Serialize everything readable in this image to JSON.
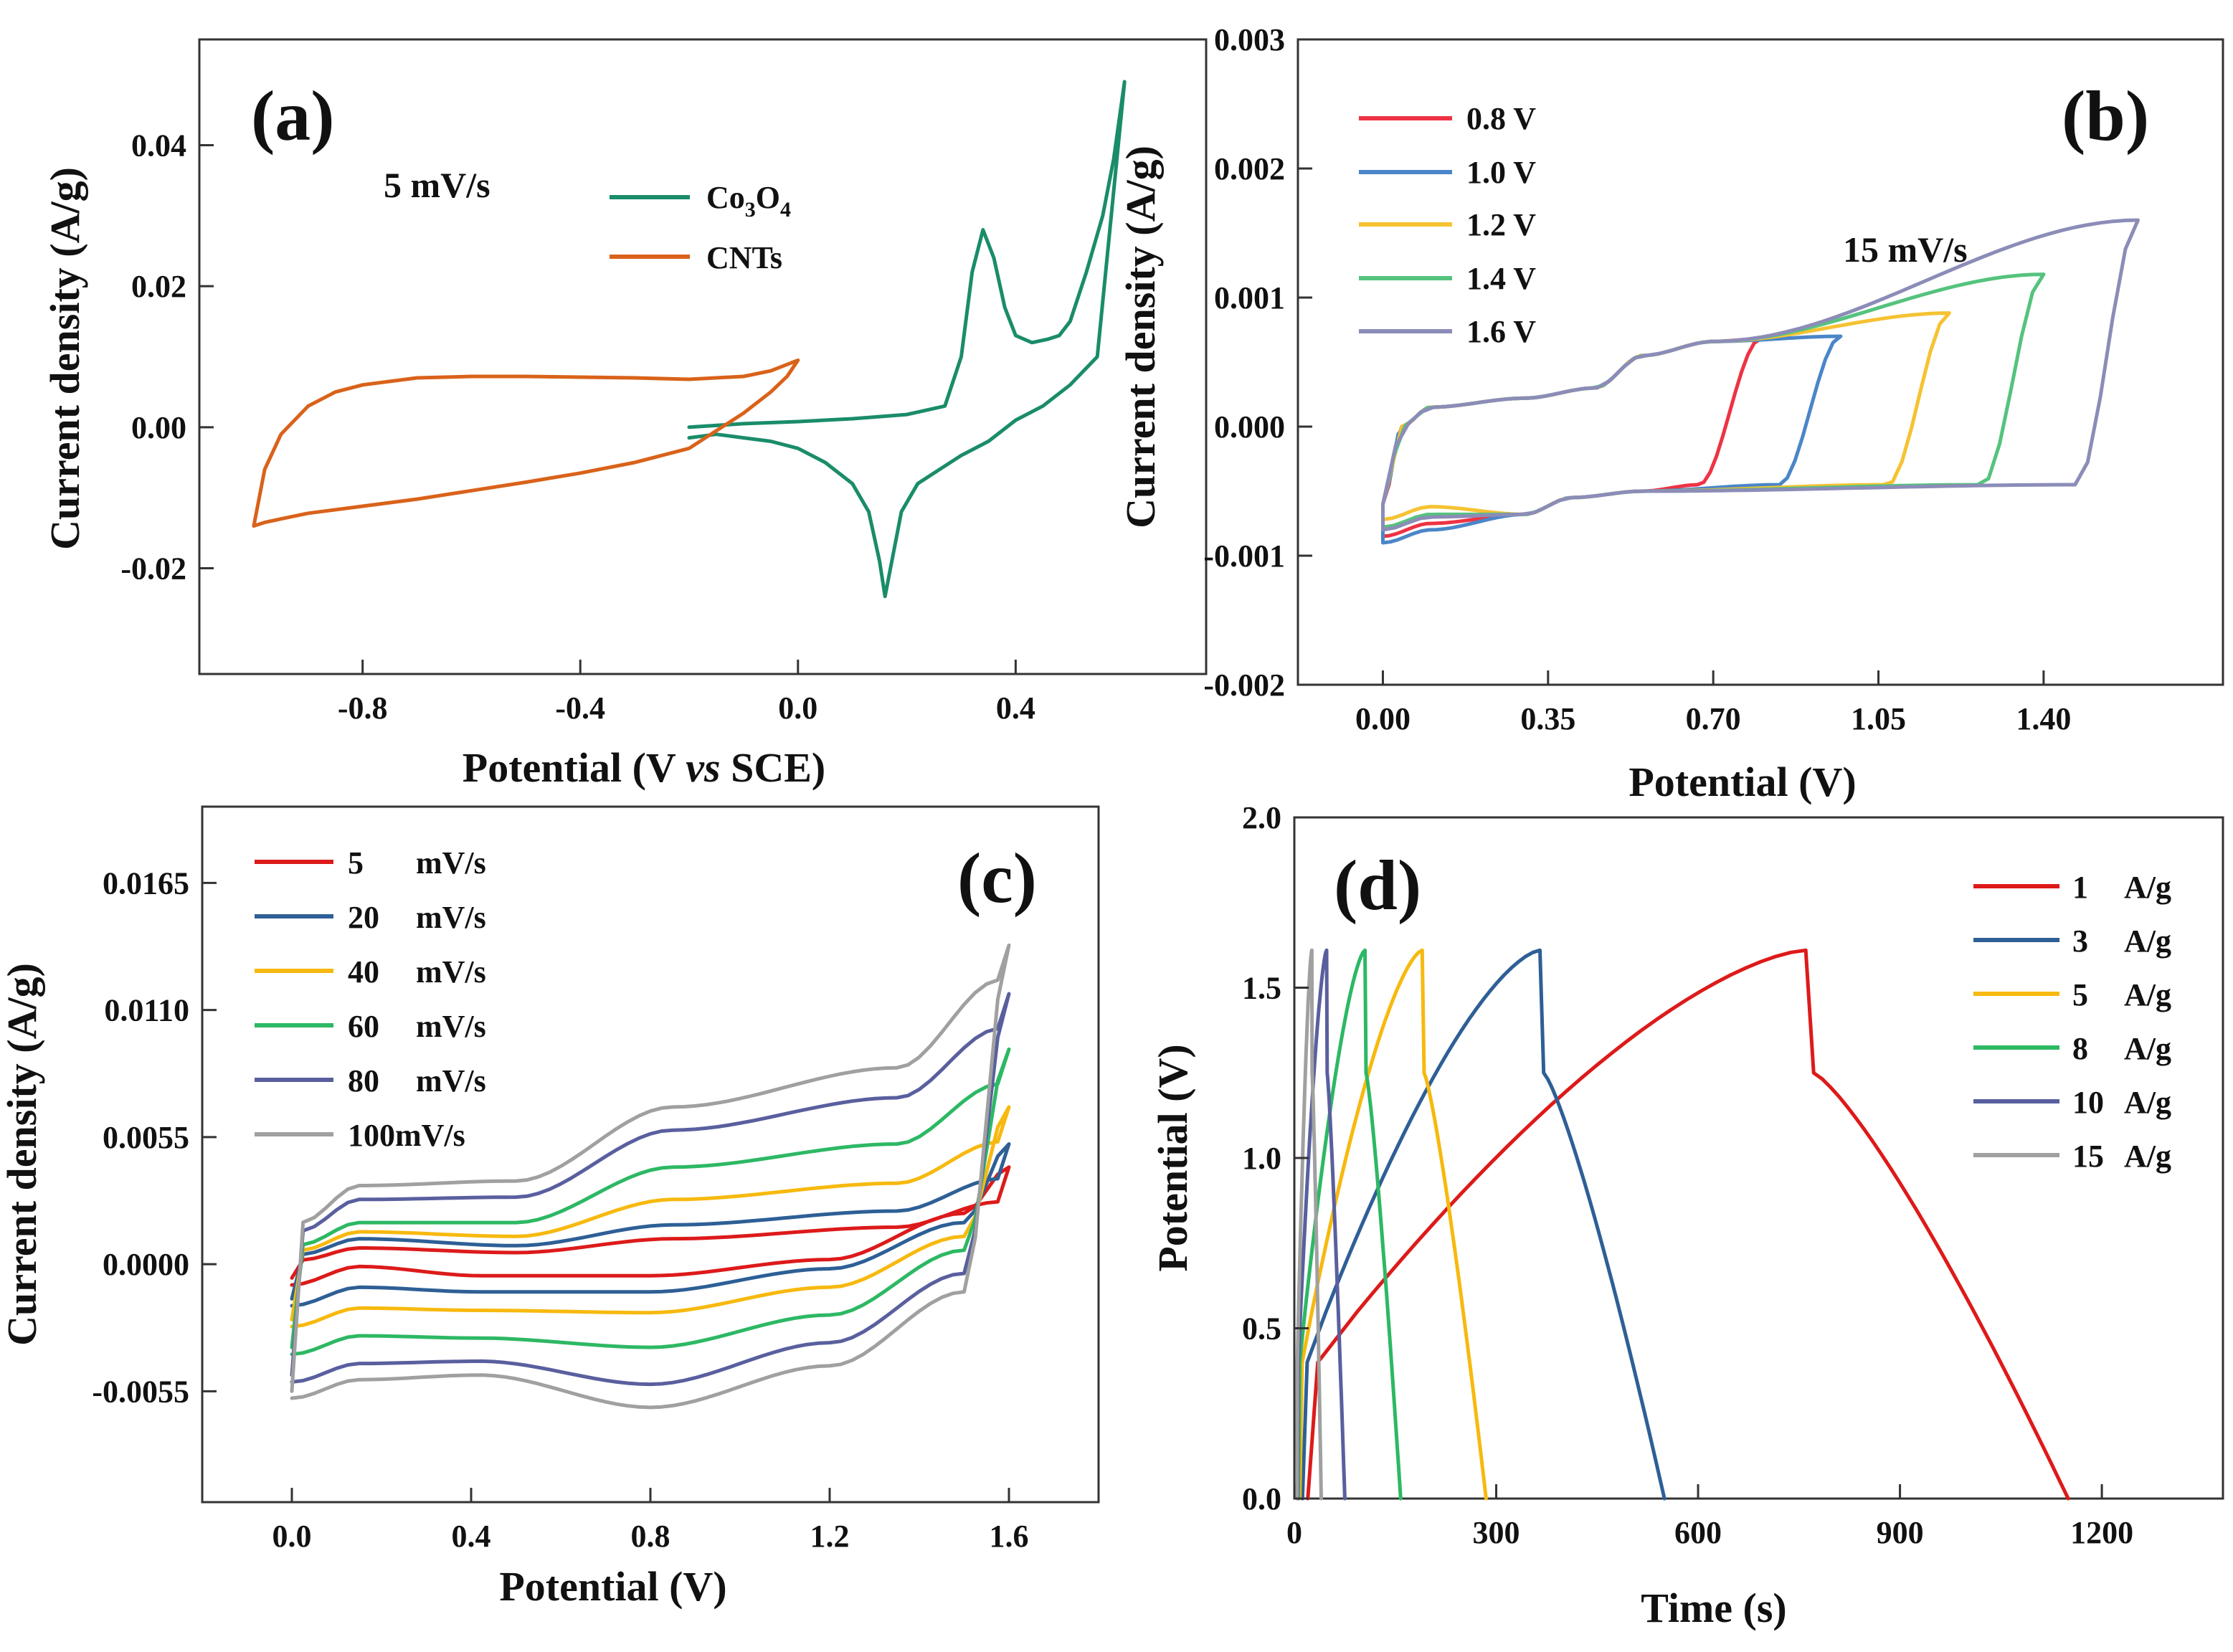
{
  "chart_data": [
    {
      "panel": "(a)",
      "type": "line",
      "subtype": "cyclic voltammetry",
      "xlabel": "Potential (V vs SCE)",
      "xlabel_parts": [
        "Potential (V ",
        "vs",
        " SCE)"
      ],
      "ylabel": "Current density (A/g)",
      "xlim": [
        -1.1,
        0.75
      ],
      "ylim": [
        -0.035,
        0.055
      ],
      "xticks": [
        -0.8,
        -0.4,
        0.0,
        0.4
      ],
      "xtick_labels": [
        "-0.8",
        "-0.4",
        "0.0",
        "0.4"
      ],
      "yticks": [
        -0.02,
        0.0,
        0.02,
        0.04
      ],
      "ytick_labels": [
        "-0.02",
        "0.00",
        "0.02",
        "0.04"
      ],
      "annotation": "5 mV/s",
      "legend": [
        {
          "label_main": "Co",
          "sub1": "3",
          "mid": "O",
          "sub2": "4",
          "color": "#1a8c6a"
        },
        {
          "label_main": "CNTs",
          "color": "#d9621a"
        }
      ],
      "series": [
        {
          "name": "Co3O4",
          "color": "#1a8c6a",
          "x": [
            -0.2,
            -0.1,
            0.0,
            0.1,
            0.2,
            0.27,
            0.3,
            0.32,
            0.34,
            0.36,
            0.38,
            0.4,
            0.43,
            0.46,
            0.48,
            0.5,
            0.53,
            0.56,
            0.58,
            0.6,
            0.55,
            0.5,
            0.45,
            0.4,
            0.35,
            0.3,
            0.26,
            0.22,
            0.19,
            0.17,
            0.16,
            0.15,
            0.13,
            0.1,
            0.05,
            0.0,
            -0.05,
            -0.1,
            -0.15,
            -0.2
          ],
          "y": [
            0.0,
            0.0005,
            0.0008,
            0.0012,
            0.0018,
            0.003,
            0.01,
            0.022,
            0.028,
            0.024,
            0.017,
            0.013,
            0.012,
            0.0125,
            0.013,
            0.015,
            0.022,
            0.03,
            0.038,
            0.049,
            0.01,
            0.006,
            0.003,
            0.001,
            -0.002,
            -0.004,
            -0.006,
            -0.008,
            -0.012,
            -0.02,
            -0.024,
            -0.019,
            -0.012,
            -0.008,
            -0.005,
            -0.003,
            -0.002,
            -0.0015,
            -0.001,
            -0.0015
          ]
        },
        {
          "name": "CNTs",
          "color": "#d9621a",
          "x": [
            -1.0,
            -0.98,
            -0.95,
            -0.9,
            -0.85,
            -0.8,
            -0.7,
            -0.6,
            -0.5,
            -0.4,
            -0.3,
            -0.2,
            -0.1,
            -0.05,
            0.0,
            -0.02,
            -0.05,
            -0.1,
            -0.2,
            -0.3,
            -0.4,
            -0.5,
            -0.6,
            -0.7,
            -0.8,
            -0.9,
            -0.95,
            -0.98,
            -1.0
          ],
          "y": [
            -0.014,
            -0.006,
            -0.001,
            0.003,
            0.005,
            0.006,
            0.007,
            0.0072,
            0.0072,
            0.0071,
            0.007,
            0.0068,
            0.0072,
            0.008,
            0.0095,
            0.0072,
            0.005,
            0.002,
            -0.003,
            -0.005,
            -0.0065,
            -0.0078,
            -0.009,
            -0.0102,
            -0.0112,
            -0.0122,
            -0.013,
            -0.0135,
            -0.014
          ]
        }
      ]
    },
    {
      "panel": "(b)",
      "type": "line",
      "subtype": "cyclic voltammetry",
      "xlabel": "Potential (V)",
      "ylabel": "Current density (A/g)",
      "xlim": [
        -0.18,
        1.78
      ],
      "ylim": [
        -0.002,
        0.003
      ],
      "xticks": [
        0.0,
        0.35,
        0.7,
        1.05,
        1.4
      ],
      "xtick_labels": [
        "0.00",
        "0.35",
        "0.70",
        "1.05",
        "1.40"
      ],
      "yticks": [
        -0.002,
        -0.001,
        0.0,
        0.001,
        0.002,
        0.003
      ],
      "ytick_labels": [
        "-0.002",
        "-0.001",
        "0.000",
        "0.001",
        "0.002",
        "0.003"
      ],
      "annotation": "15 mV/s",
      "series": [
        {
          "name": "0.8 V",
          "label": "0.8 V",
          "color": "#ee3344",
          "vmax": 0.8,
          "top_end": 0.00068,
          "ymin": -0.00085
        },
        {
          "name": "1.0 V",
          "label": "1.0 V",
          "color": "#4a86c8",
          "vmax": 0.97,
          "top_end": 0.0007,
          "ymin": -0.0009
        },
        {
          "name": "1.2 V",
          "label": "1.2 V",
          "color": "#f5c232",
          "vmax": 1.2,
          "top_end": 0.00088,
          "ymin": -0.00072
        },
        {
          "name": "1.4 V",
          "label": "1.4 V",
          "color": "#55c37d",
          "vmax": 1.4,
          "top_end": 0.00118,
          "ymin": -0.00078
        },
        {
          "name": "1.6 V",
          "label": "1.6 V",
          "color": "#8c8cb8",
          "vmax": 1.6,
          "top_end": 0.0016,
          "ymin": -0.0008
        }
      ]
    },
    {
      "panel": "(c)",
      "type": "line",
      "subtype": "cyclic voltammetry",
      "xlabel": "Potential (V)",
      "ylabel": "Current density (A/g)",
      "xlim": [
        -0.2,
        1.8
      ],
      "ylim": [
        -0.0103,
        0.0198
      ],
      "xticks": [
        0.0,
        0.4,
        0.8,
        1.2,
        1.6
      ],
      "xtick_labels": [
        "0.0",
        "0.4",
        "0.8",
        "1.2",
        "1.6"
      ],
      "yticks": [
        -0.0055,
        0.0,
        0.0055,
        0.011,
        0.0165
      ],
      "ytick_labels": [
        "-0.0055",
        "0.0000",
        "0.0055",
        "0.0110",
        "0.0165"
      ],
      "series": [
        {
          "name": "5 mV/s",
          "label_num": "5",
          "label_unit": "mV/s",
          "color": "#dd1a1a",
          "t0": 0.0003,
          "t1": 0.0005,
          "t2": 0.0011,
          "t3": 0.0016,
          "t4": 0.0042,
          "b0": -0.0009,
          "b1": -0.0005,
          "b2": -0.0005,
          "b3": 0.0002,
          "b4": 0.0022
        },
        {
          "name": "20 mV/s",
          "label_num": "20",
          "label_unit": "mV/s",
          "color": "#2e5f96",
          "t0": 0.0007,
          "t1": 0.0008,
          "t2": 0.0017,
          "t3": 0.0023,
          "t4": 0.0052,
          "b0": -0.0018,
          "b1": -0.0012,
          "b2": -0.0012,
          "b3": -0.0002,
          "b4": 0.0018
        },
        {
          "name": "40 mV/s",
          "label_num": "40",
          "label_unit": "mV/s",
          "color": "#f7b90f",
          "t0": 0.001,
          "t1": 0.0012,
          "t2": 0.0028,
          "t3": 0.0035,
          "t4": 0.0068,
          "b0": -0.0027,
          "b1": -0.002,
          "b2": -0.0021,
          "b3": -0.001,
          "b4": 0.0012
        },
        {
          "name": "60 mV/s",
          "label_num": "60",
          "label_unit": "mV/s",
          "color": "#2db864",
          "t0": 0.0014,
          "t1": 0.0018,
          "t2": 0.0042,
          "t3": 0.0052,
          "t4": 0.0093,
          "b0": -0.0039,
          "b1": -0.0032,
          "b2": -0.0036,
          "b3": -0.0022,
          "b4": 0.0006
        },
        {
          "name": "80 mV/s",
          "label_num": "80",
          "label_unit": "mV/s",
          "color": "#595f9e",
          "t0": 0.0024,
          "t1": 0.0029,
          "t2": 0.0058,
          "t3": 0.0072,
          "t4": 0.0117,
          "b0": -0.0051,
          "b1": -0.0042,
          "b2": -0.0052,
          "b3": -0.0034,
          "b4": -0.0004
        },
        {
          "name": "100mV/s",
          "label_num": "100mV/s",
          "label_unit": "",
          "color": "#a0a0a0",
          "t0": 0.003,
          "t1": 0.0036,
          "t2": 0.0068,
          "t3": 0.0085,
          "t4": 0.0138,
          "b0": -0.0058,
          "b1": -0.0048,
          "b2": -0.0062,
          "b3": -0.0044,
          "b4": -0.0012
        }
      ]
    },
    {
      "panel": "(d)",
      "type": "line",
      "subtype": "galvanostatic charge-discharge",
      "xlabel": "Time (s)",
      "ylabel": "Potential (V)",
      "xlim": [
        0,
        1380
      ],
      "ylim": [
        0.0,
        2.0
      ],
      "xticks": [
        0,
        300,
        600,
        900,
        1200
      ],
      "xtick_labels": [
        "0",
        "300",
        "600",
        "900",
        "1200"
      ],
      "yticks": [
        0.0,
        0.5,
        1.0,
        1.5,
        2.0
      ],
      "ytick_labels": [
        "0.0",
        "0.5",
        "1.0",
        "1.5",
        "2.0"
      ],
      "series": [
        {
          "name": "1 A/g",
          "label_num": "1",
          "label_unit": "A/g",
          "color": "#dd1a1a",
          "t_start": 20,
          "t_peak": 760,
          "t_end": 1150
        },
        {
          "name": "3 A/g",
          "label_num": "3",
          "label_unit": "A/g",
          "color": "#2e5f96",
          "t_start": 12,
          "t_peak": 365,
          "t_end": 550
        },
        {
          "name": "5 A/g",
          "label_num": "5",
          "label_unit": "A/g",
          "color": "#f7b90f",
          "t_start": 8,
          "t_peak": 190,
          "t_end": 285
        },
        {
          "name": "8 A/g",
          "label_num": "8",
          "label_unit": "A/g",
          "color": "#2db864",
          "t_start": 6,
          "t_peak": 105,
          "t_end": 158
        },
        {
          "name": "10 A/g",
          "label_num": "10",
          "label_unit": "A/g",
          "color": "#595f9e",
          "t_start": 5,
          "t_peak": 48,
          "t_end": 75
        },
        {
          "name": "15 A/g",
          "label_num": "15",
          "label_unit": "A/g",
          "color": "#a0a0a0",
          "t_start": 4,
          "t_peak": 26,
          "t_end": 40
        }
      ],
      "v_peak": 1.61
    }
  ]
}
